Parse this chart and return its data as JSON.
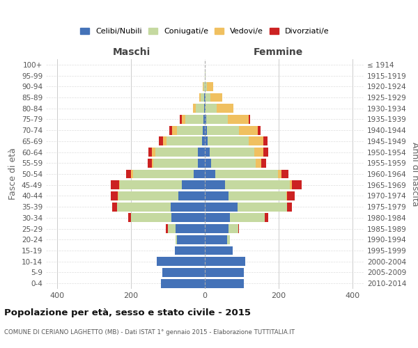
{
  "age_groups": [
    "0-4",
    "5-9",
    "10-14",
    "15-19",
    "20-24",
    "25-29",
    "30-34",
    "35-39",
    "40-44",
    "45-49",
    "50-54",
    "55-59",
    "60-64",
    "65-69",
    "70-74",
    "75-79",
    "80-84",
    "85-89",
    "90-94",
    "95-99",
    "100+"
  ],
  "birth_years": [
    "2010-2014",
    "2005-2009",
    "2000-2004",
    "1995-1999",
    "1990-1994",
    "1985-1989",
    "1980-1984",
    "1975-1979",
    "1970-1974",
    "1965-1969",
    "1960-1964",
    "1955-1959",
    "1950-1954",
    "1945-1949",
    "1940-1944",
    "1935-1939",
    "1930-1934",
    "1925-1929",
    "1920-1924",
    "1915-1919",
    "≤ 1914"
  ],
  "maschi": {
    "celibi": [
      118,
      115,
      130,
      82,
      75,
      80,
      90,
      93,
      72,
      62,
      30,
      19,
      18,
      8,
      6,
      4,
      2,
      1,
      0,
      0,
      0
    ],
    "coniugati": [
      0,
      0,
      0,
      0,
      5,
      20,
      110,
      145,
      162,
      168,
      165,
      120,
      115,
      95,
      70,
      48,
      22,
      10,
      3,
      0,
      0
    ],
    "vedovi": [
      0,
      0,
      0,
      0,
      0,
      0,
      0,
      0,
      2,
      2,
      4,
      4,
      10,
      10,
      12,
      10,
      8,
      5,
      2,
      0,
      0
    ],
    "divorziati": [
      0,
      0,
      0,
      0,
      0,
      5,
      8,
      12,
      18,
      22,
      15,
      12,
      10,
      12,
      8,
      5,
      0,
      0,
      0,
      0,
      0
    ]
  },
  "femmine": {
    "nubili": [
      105,
      105,
      110,
      75,
      60,
      65,
      68,
      88,
      65,
      55,
      28,
      17,
      14,
      8,
      5,
      3,
      2,
      1,
      0,
      0,
      0
    ],
    "coniugate": [
      0,
      0,
      0,
      0,
      8,
      25,
      95,
      135,
      155,
      175,
      170,
      120,
      120,
      110,
      88,
      60,
      30,
      15,
      5,
      1,
      0
    ],
    "vedove": [
      0,
      0,
      0,
      0,
      0,
      0,
      0,
      0,
      2,
      5,
      10,
      15,
      25,
      40,
      50,
      55,
      45,
      32,
      18,
      1,
      0
    ],
    "divorziate": [
      0,
      0,
      0,
      0,
      0,
      3,
      8,
      12,
      22,
      28,
      18,
      14,
      12,
      12,
      8,
      5,
      0,
      0,
      0,
      0,
      0
    ]
  },
  "colors": {
    "celibi": "#4472b8",
    "coniugati": "#c5d9a0",
    "vedovi": "#f0c060",
    "divorziati": "#cc2222"
  },
  "xlim": 430,
  "title": "Popolazione per età, sesso e stato civile - 2015",
  "subtitle": "COMUNE DI CERIANO LAGHETTO (MB) - Dati ISTAT 1° gennaio 2015 - Elaborazione TUTTITALIA.IT",
  "ylabel_left": "Fasce di età",
  "ylabel_right": "Anni di nascita",
  "xlabel_maschi": "Maschi",
  "xlabel_femmine": "Femmine",
  "legend_labels": [
    "Celibi/Nubili",
    "Coniugati/e",
    "Vedovi/e",
    "Divorziati/e"
  ],
  "bg_color": "#ffffff",
  "grid_color": "#cccccc"
}
